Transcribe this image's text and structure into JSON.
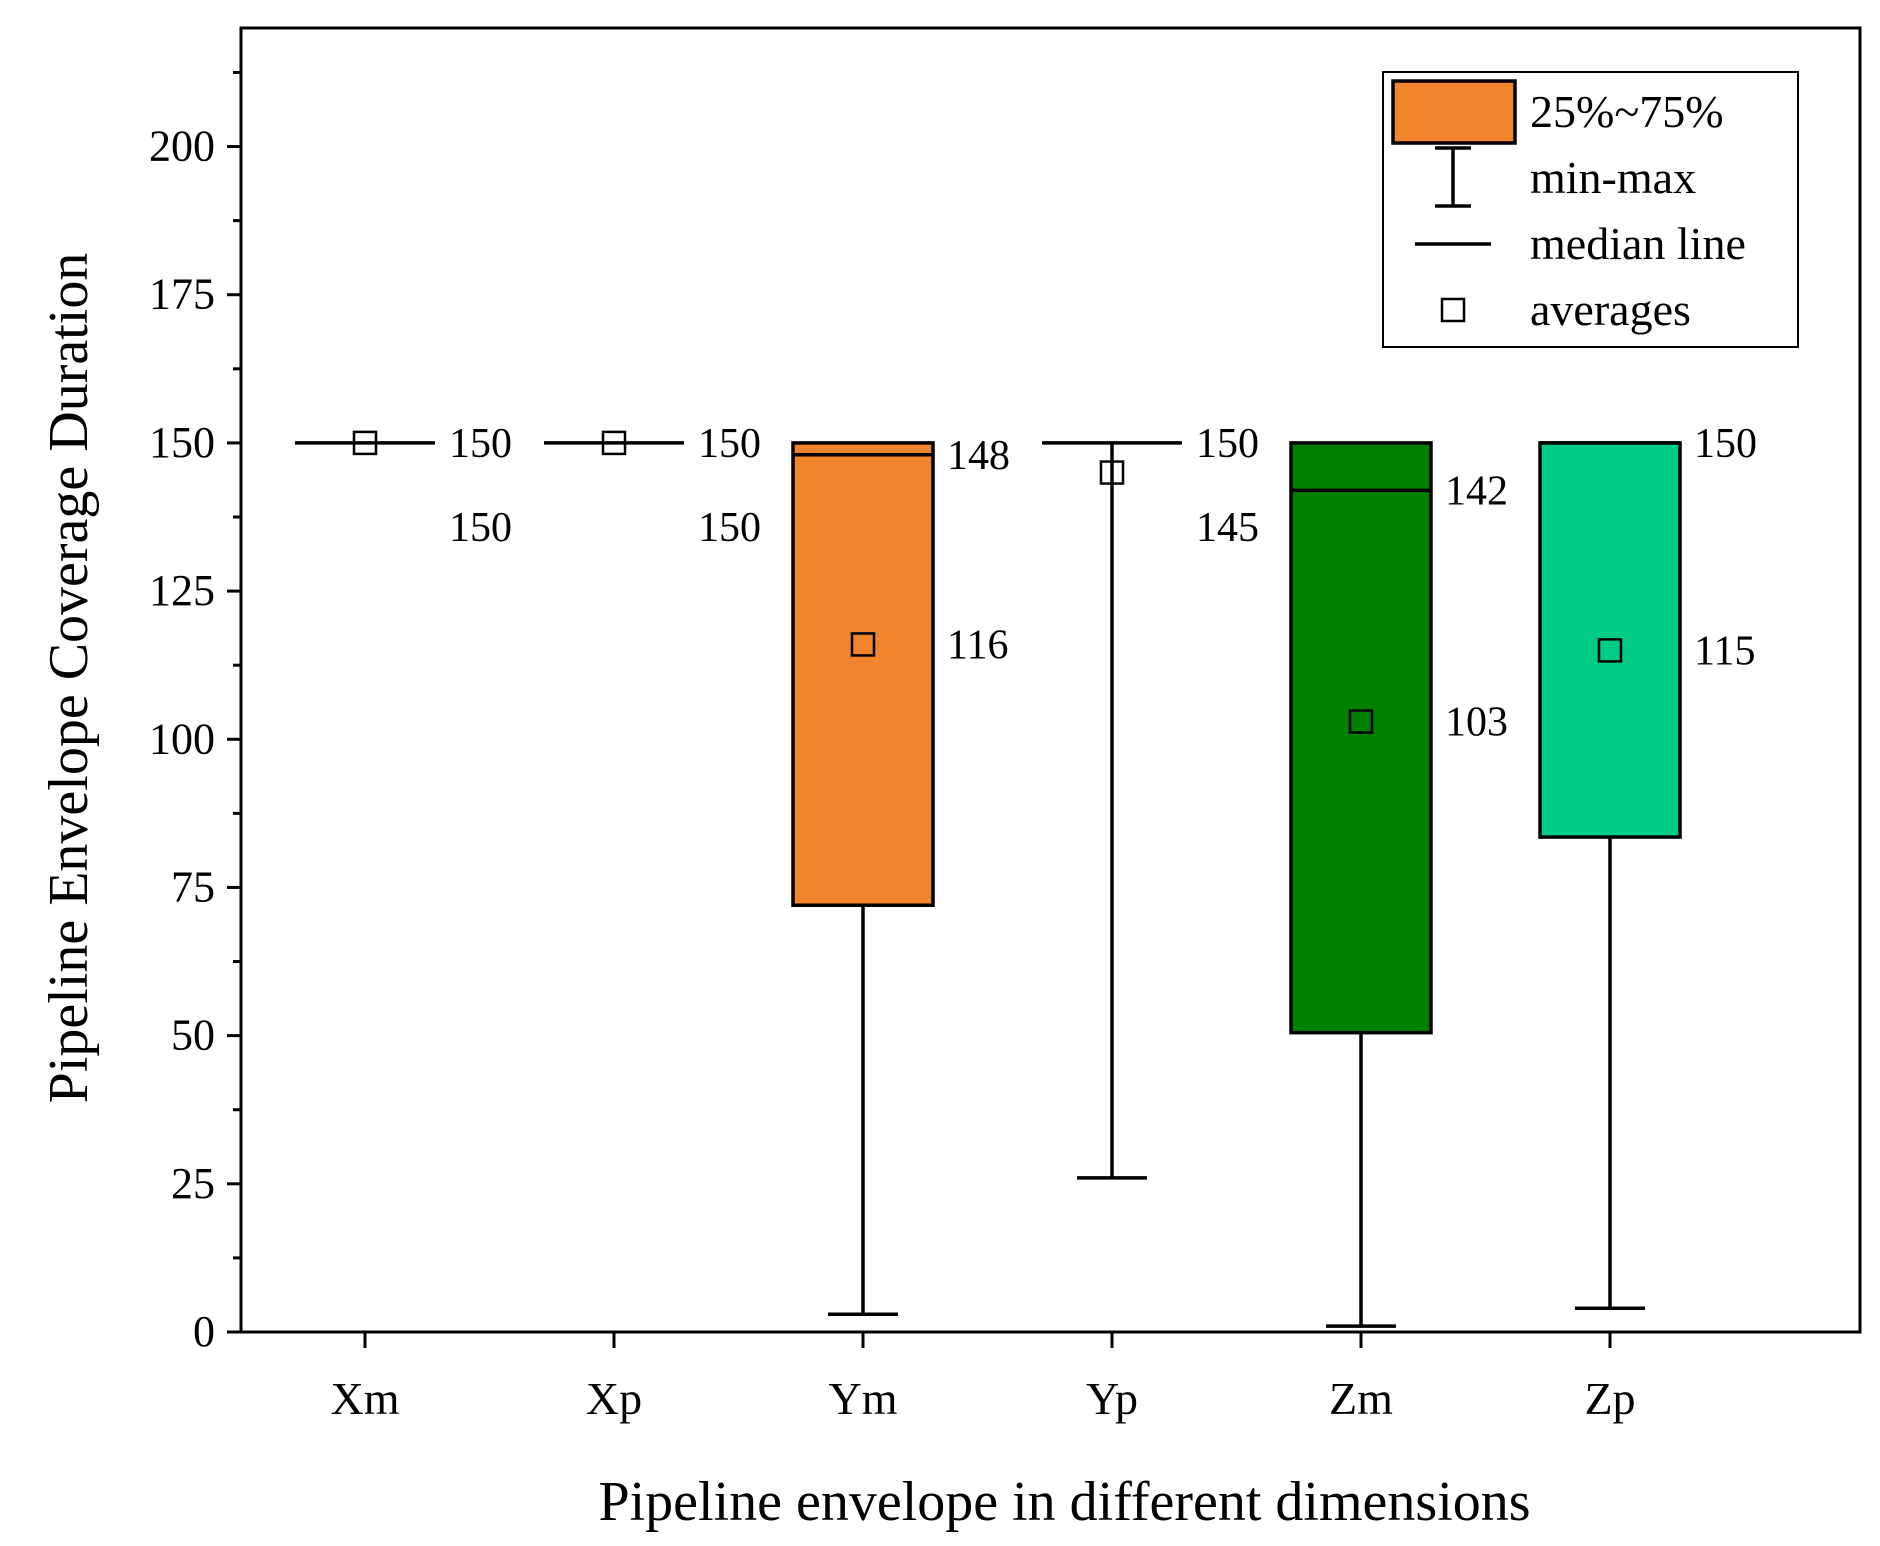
{
  "chart_data": {
    "type": "box",
    "title": "",
    "xlabel": "Pipeline envelope in different dimensions",
    "ylabel": "Pipeline Envelope Coverage Duration",
    "ylim": [
      0,
      220
    ],
    "yticks": [
      0,
      25,
      50,
      75,
      100,
      125,
      150,
      175,
      200
    ],
    "categories": [
      "Xm",
      "Xp",
      "Ym",
      "Yp",
      "Zm",
      "Zp"
    ],
    "boxes": [
      {
        "category": "Xm",
        "min": 150,
        "q1": 150,
        "median": 150,
        "q3": 150,
        "max": 150,
        "mean": 150,
        "color": "#ffffff",
        "median_label": "150",
        "mean_label": "150"
      },
      {
        "category": "Xp",
        "min": 150,
        "q1": 150,
        "median": 150,
        "q3": 150,
        "max": 150,
        "mean": 150,
        "color": "#ffffff",
        "median_label": "150",
        "mean_label": "150"
      },
      {
        "category": "Ym",
        "min": 3,
        "q1": 72,
        "median": 148,
        "q3": 150,
        "max": 150,
        "mean": 116,
        "color": "#F0852D",
        "median_label": "148",
        "mean_label": "116"
      },
      {
        "category": "Yp",
        "min": 26,
        "q1": 150,
        "median": 150,
        "q3": 150,
        "max": 150,
        "mean": 145,
        "color": "#ffffff",
        "median_label": "150",
        "mean_label": "145"
      },
      {
        "category": "Zm",
        "min": 1,
        "q1": 50.5,
        "median": 142,
        "q3": 150,
        "max": 150,
        "mean": 103,
        "color": "#008000",
        "median_label": "142",
        "mean_label": "103"
      },
      {
        "category": "Zp",
        "min": 4,
        "q1": 83.5,
        "median": 150,
        "q3": 150,
        "max": 150,
        "mean": 115,
        "color": "#00CC88",
        "median_label": "150",
        "mean_label": "115"
      }
    ],
    "legend": {
      "position": "top-right",
      "items": [
        {
          "label": "25%~75%",
          "symbol": "box",
          "color": "#F0852D"
        },
        {
          "label": "min-max",
          "symbol": "whisker"
        },
        {
          "label": "median line",
          "symbol": "line"
        },
        {
          "label": "averages",
          "symbol": "square"
        }
      ]
    }
  }
}
